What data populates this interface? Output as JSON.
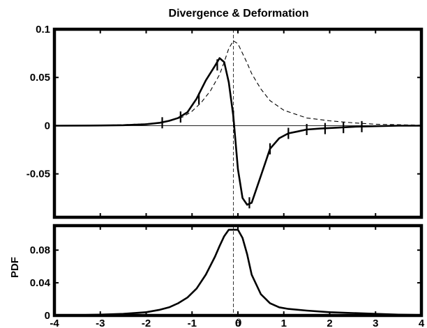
{
  "chart_data": [
    {
      "type": "line",
      "title": "Divergence & Deformation",
      "xlabel": "",
      "ylabel": "",
      "xlim": [
        -4,
        4
      ],
      "ylim": [
        -0.095,
        0.1
      ],
      "yticks": [
        -0.05,
        0,
        0.05,
        0.1
      ],
      "ytick_labels": [
        "-0.05",
        "0",
        "0.05",
        "0.1"
      ],
      "grid": false,
      "zero_line": 0,
      "vertical_reference_x": -0.1,
      "series": [
        {
          "style": "solid-thick",
          "x": [
            -4,
            -3,
            -2.5,
            -2,
            -1.7,
            -1.5,
            -1.3,
            -1.1,
            -0.9,
            -0.7,
            -0.5,
            -0.4,
            -0.3,
            -0.2,
            -0.1,
            0,
            0.1,
            0.2,
            0.3,
            0.5,
            0.7,
            0.9,
            1.1,
            1.3,
            1.5,
            1.8,
            2.2,
            2.6,
            3,
            3.5,
            4
          ],
          "y": [
            0,
            0.0002,
            0.0005,
            0.0015,
            0.003,
            0.005,
            0.008,
            0.014,
            0.028,
            0.047,
            0.062,
            0.07,
            0.066,
            0.045,
            0.01,
            -0.045,
            -0.075,
            -0.082,
            -0.08,
            -0.052,
            -0.024,
            -0.013,
            -0.008,
            -0.006,
            -0.004,
            -0.003,
            -0.002,
            -0.001,
            -0.0005,
            0,
            0
          ],
          "error_x": [
            -1.65,
            -1.25,
            -0.85,
            -0.45,
            -0.1,
            0.25,
            0.7,
            1.1,
            1.5,
            1.9,
            2.3,
            2.7
          ],
          "error_y": [
            0.003,
            0.009,
            0.028,
            0.063,
            0.01,
            -0.08,
            -0.024,
            -0.008,
            -0.004,
            -0.003,
            -0.002,
            -0.001
          ]
        },
        {
          "style": "dashed-thin",
          "x": [
            -4,
            -3,
            -2.5,
            -2,
            -1.7,
            -1.5,
            -1.2,
            -1,
            -0.8,
            -0.6,
            -0.4,
            -0.3,
            -0.2,
            -0.1,
            0,
            0.1,
            0.2,
            0.3,
            0.5,
            0.7,
            1,
            1.5,
            2,
            2.5,
            3,
            3.5,
            4
          ],
          "y": [
            0,
            0.0005,
            0.001,
            0.002,
            0.003,
            0.005,
            0.009,
            0.015,
            0.024,
            0.036,
            0.053,
            0.066,
            0.08,
            0.088,
            0.085,
            0.075,
            0.065,
            0.054,
            0.038,
            0.026,
            0.016,
            0.008,
            0.005,
            0.003,
            0.0015,
            0.001,
            0.0005
          ]
        }
      ]
    },
    {
      "type": "line",
      "title": "",
      "xlabel": "θ",
      "ylabel": "PDF",
      "xlim": [
        -4,
        4
      ],
      "ylim": [
        0,
        0.11
      ],
      "xticks": [
        -4,
        -3,
        -2,
        -1,
        0,
        1,
        2,
        3,
        4
      ],
      "xtick_labels": [
        "-4",
        "-3",
        "-2",
        "-1",
        "0",
        "1",
        "2",
        "3",
        "4"
      ],
      "yticks": [
        0,
        0.04,
        0.08
      ],
      "ytick_labels": [
        "0",
        "0.04",
        "0.08"
      ],
      "grid": false,
      "vertical_reference_x": -0.1,
      "series": [
        {
          "style": "solid-thick",
          "x": [
            -4,
            -3.5,
            -3,
            -2.5,
            -2,
            -1.7,
            -1.5,
            -1.3,
            -1.1,
            -0.9,
            -0.7,
            -0.5,
            -0.4,
            -0.3,
            -0.2,
            -0.1,
            0,
            0.1,
            0.2,
            0.3,
            0.5,
            0.7,
            0.9,
            1.1,
            1.5,
            2,
            2.5,
            3,
            3.5,
            4
          ],
          "y": [
            0,
            0.0003,
            0.001,
            0.002,
            0.004,
            0.007,
            0.01,
            0.015,
            0.022,
            0.033,
            0.05,
            0.072,
            0.085,
            0.097,
            0.105,
            0.105,
            0.105,
            0.095,
            0.075,
            0.05,
            0.026,
            0.015,
            0.01,
            0.008,
            0.006,
            0.004,
            0.003,
            0.002,
            0.001,
            0.0005
          ]
        }
      ]
    }
  ]
}
